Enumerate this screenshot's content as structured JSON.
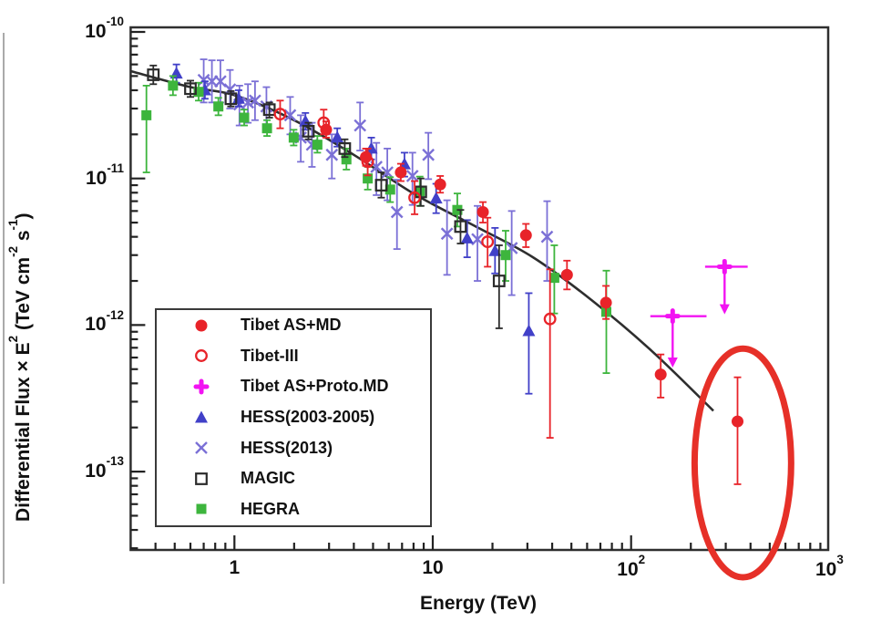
{
  "chart_data": {
    "type": "scatter",
    "title": "",
    "xlabel": "Energy (TeV)",
    "ylabel": "Differential Flux × E2 (TeV cm-2 s-1)",
    "ylabel_segments": [
      {
        "t": "Differential Flux "
      },
      {
        "t": "×"
      },
      {
        "t": " E"
      },
      {
        "sup": "2"
      },
      {
        "t": " (TeV cm"
      },
      {
        "sup": "-2"
      },
      {
        "t": " s"
      },
      {
        "sup": "-1"
      },
      {
        "t": ")"
      }
    ],
    "x_axis": {
      "scale": "log",
      "min": 0.3,
      "max": 1000,
      "ticks": [
        {
          "v": 1,
          "base": "1",
          "exp": ""
        },
        {
          "v": 10,
          "base": "10",
          "exp": ""
        },
        {
          "v": 100,
          "base": "10",
          "exp": "2"
        },
        {
          "v": 1000,
          "base": "10",
          "exp": "3"
        }
      ]
    },
    "y_axis": {
      "scale": "log",
      "min": 2.9e-14,
      "max": 1.07e-10,
      "ticks": [
        {
          "v": 1e-10,
          "base": "10",
          "exp": "-10"
        },
        {
          "v": 1e-11,
          "base": "10",
          "exp": "-11"
        },
        {
          "v": 1e-12,
          "base": "10",
          "exp": "-12"
        },
        {
          "v": 1e-13,
          "base": "10",
          "exp": "-13"
        }
      ]
    },
    "grid": false,
    "legend_position": "inside-left-bottom",
    "series": [
      {
        "name": "Tibet AS+MD",
        "marker": "filled-circle",
        "color": "#e82329",
        "points": [
          [
            2.9,
            2.15e-11,
            1.9e-11,
            2.45e-11
          ],
          [
            4.6,
            1.4e-11,
            1.22e-11,
            1.6e-11
          ],
          [
            6.9,
            1.1e-11,
            9.6e-12,
            1.26e-11
          ],
          [
            10.9,
            9.1e-12,
            8e-12,
            1.04e-11
          ],
          [
            17.9,
            5.9e-12,
            5e-12,
            6.9e-12
          ],
          [
            29.5,
            4.1e-12,
            3.4e-12,
            4.9e-12
          ],
          [
            47.5,
            2.2e-12,
            1.75e-12,
            2.75e-12
          ],
          [
            74.7,
            1.42e-12,
            1.1e-12,
            1.85e-12
          ],
          [
            141,
            4.6e-13,
            3.2e-13,
            6.3e-13
          ],
          [
            344,
            2.2e-13,
            8.2e-14,
            4.4e-13
          ]
        ]
      },
      {
        "name": "Tibet-III",
        "marker": "open-circle",
        "color": "#e82329",
        "points": [
          [
            1.7,
            2.75e-11,
            2.2e-11,
            3.4e-11
          ],
          [
            2.82,
            2.4e-11,
            2e-11,
            2.95e-11
          ],
          [
            4.7,
            1.3e-11,
            1.05e-11,
            1.6e-11
          ],
          [
            8.1,
            7.4e-12,
            5.7e-12,
            9.6e-12
          ],
          [
            18.9,
            3.7e-12,
            2.5e-12,
            5.4e-12
          ],
          [
            39,
            1.1e-12,
            1.7e-13,
            2.4e-12
          ]
        ]
      },
      {
        "name": "Tibet AS+Proto.MD",
        "marker": "bold-cross",
        "color": "#f213f2",
        "upper_limits": [
          {
            "e": 162,
            "e_lo": 125,
            "e_hi": 240,
            "f": 1.15e-12,
            "arrow_to": 5.2e-13
          },
          {
            "e": 296,
            "e_lo": 236,
            "e_hi": 387,
            "f": 2.5e-12,
            "arrow_to": 1.2e-12
          }
        ],
        "points": []
      },
      {
        "name": "HESS(2003-2005)",
        "marker": "filled-triangle",
        "color": "#4140c8",
        "points": [
          [
            0.51,
            5.2e-11,
            4.5e-11,
            6e-11
          ],
          [
            0.71,
            4e-11,
            3.5e-11,
            4.6e-11
          ],
          [
            1.05,
            3.5e-11,
            3.1e-11,
            4e-11
          ],
          [
            2.28,
            2.45e-11,
            2.15e-11,
            2.8e-11
          ],
          [
            3.3,
            1.9e-11,
            1.65e-11,
            2.2e-11
          ],
          [
            4.9,
            1.6e-11,
            1.35e-11,
            1.9e-11
          ],
          [
            7.2,
            1.25e-11,
            1.03e-11,
            1.5e-11
          ],
          [
            10.4,
            7.3e-12,
            5.8e-12,
            9.2e-12
          ],
          [
            14.9,
            3.9e-12,
            2.9e-12,
            5.2e-12
          ],
          [
            20.6,
            3.2e-12,
            2.25e-12,
            4.6e-12
          ],
          [
            30.5,
            9.1e-13,
            3.4e-13,
            1.65e-12
          ]
        ]
      },
      {
        "name": "HESS(2013)",
        "marker": "x-cross",
        "color": "#7b70d6",
        "points": [
          [
            0.7,
            4.7e-11,
            3.3e-11,
            6.5e-11
          ],
          [
            0.77,
            4.6e-11,
            3.3e-11,
            6.4e-11
          ],
          [
            0.85,
            4.6e-11,
            3.3e-11,
            6.4e-11
          ],
          [
            0.95,
            4.05e-11,
            3e-11,
            5.5e-11
          ],
          [
            1.06,
            3.2e-11,
            2.3e-11,
            4.3e-11
          ],
          [
            1.17,
            3.3e-11,
            2.4e-11,
            4.4e-11
          ],
          [
            1.27,
            3.4e-11,
            2.5e-11,
            4.6e-11
          ],
          [
            1.45,
            3.1e-11,
            2.3e-11,
            4.2e-11
          ],
          [
            1.91,
            2.7e-11,
            2e-11,
            3.6e-11
          ],
          [
            2.16,
            1.9e-11,
            1.3e-11,
            2.7e-11
          ],
          [
            2.46,
            1.7e-11,
            1.2e-11,
            2.4e-11
          ],
          [
            3.1,
            1.45e-11,
            1e-11,
            2e-11
          ],
          [
            4.3,
            2.3e-11,
            1.55e-11,
            3.3e-11
          ],
          [
            5.2,
            1.2e-11,
            7.7e-12,
            1.75e-11
          ],
          [
            5.9,
            1.1e-11,
            7.1e-12,
            1.6e-11
          ],
          [
            6.6,
            5.9e-12,
            3.3e-12,
            9.8e-12
          ],
          [
            7.9,
            1.04e-11,
            6.6e-12,
            1.5e-11
          ],
          [
            9.5,
            1.45e-11,
            9.9e-12,
            2.05e-11
          ],
          [
            11.8,
            4.2e-12,
            2.2e-12,
            7.1e-12
          ],
          [
            16.8,
            3.85e-12,
            2e-12,
            6.5e-12
          ],
          [
            25,
            3.35e-12,
            1.6e-12,
            6e-12
          ],
          [
            37.7,
            4e-12,
            2e-12,
            7e-12
          ]
        ]
      },
      {
        "name": "MAGIC",
        "marker": "open-square",
        "color": "#2b2b2b",
        "points": [
          [
            0.39,
            5.1e-11,
            4.4e-11,
            5.9e-11
          ],
          [
            0.6,
            4.1e-11,
            3.6e-11,
            4.65e-11
          ],
          [
            0.96,
            3.5e-11,
            3.1e-11,
            3.95e-11
          ],
          [
            1.5,
            2.95e-11,
            2.6e-11,
            3.3e-11
          ],
          [
            2.36,
            2.1e-11,
            1.85e-11,
            2.4e-11
          ],
          [
            3.6,
            1.6e-11,
            1.4e-11,
            1.85e-11
          ],
          [
            5.5,
            9e-12,
            7.4e-12,
            1.1e-11
          ],
          [
            8.7,
            8.1e-12,
            6.5e-12,
            1e-11
          ],
          [
            13.8,
            4.7e-12,
            3.6e-12,
            6.1e-12
          ],
          [
            21.6,
            2e-12,
            9.5e-13,
            3.5e-12
          ]
        ]
      },
      {
        "name": "HEGRA",
        "marker": "filled-square",
        "color": "#3db53d",
        "points": [
          [
            0.36,
            2.7e-11,
            1.1e-11,
            4.3e-11
          ],
          [
            0.49,
            4.3e-11,
            3.7e-11,
            5e-11
          ],
          [
            0.66,
            3.9e-11,
            3.4e-11,
            4.5e-11
          ],
          [
            0.83,
            3.1e-11,
            2.7e-11,
            3.55e-11
          ],
          [
            1.12,
            2.6e-11,
            2.3e-11,
            2.95e-11
          ],
          [
            1.46,
            2.2e-11,
            1.95e-11,
            2.5e-11
          ],
          [
            1.99,
            1.9e-11,
            1.68e-11,
            2.15e-11
          ],
          [
            2.62,
            1.7e-11,
            1.5e-11,
            1.95e-11
          ],
          [
            3.67,
            1.35e-11,
            1.15e-11,
            1.6e-11
          ],
          [
            4.7,
            1e-11,
            8.4e-12,
            1.2e-11
          ],
          [
            6.1,
            8.4e-12,
            6.9e-12,
            1.02e-11
          ],
          [
            8.6,
            8.2e-12,
            6.5e-12,
            1.03e-11
          ],
          [
            13.3,
            6.1e-12,
            4.7e-12,
            7.9e-12
          ],
          [
            23.3,
            3e-12,
            2e-12,
            4.4e-12
          ],
          [
            41,
            2.1e-12,
            1.2e-12,
            3.5e-12
          ],
          [
            75,
            1.23e-12,
            4.7e-13,
            2.35e-12
          ]
        ]
      }
    ],
    "fit_curve": {
      "color": "#2e2e2e",
      "points": [
        [
          0.3,
          5.4e-11
        ],
        [
          0.6,
          4.2e-11
        ],
        [
          1,
          3.7e-11
        ],
        [
          2,
          2.5e-11
        ],
        [
          4,
          1.45e-11
        ],
        [
          8,
          7.9e-12
        ],
        [
          16,
          4.8e-12
        ],
        [
          32,
          2.9e-12
        ],
        [
          64,
          1.46e-12
        ],
        [
          128,
          6.6e-13
        ],
        [
          260,
          2.6e-13
        ]
      ]
    },
    "annotation": {
      "shape": "ellipse",
      "color": "#e63028",
      "stroke_width": 7,
      "e_range": [
        209,
        641
      ],
      "f_range": [
        1.9e-14,
        6.9e-13
      ]
    }
  }
}
